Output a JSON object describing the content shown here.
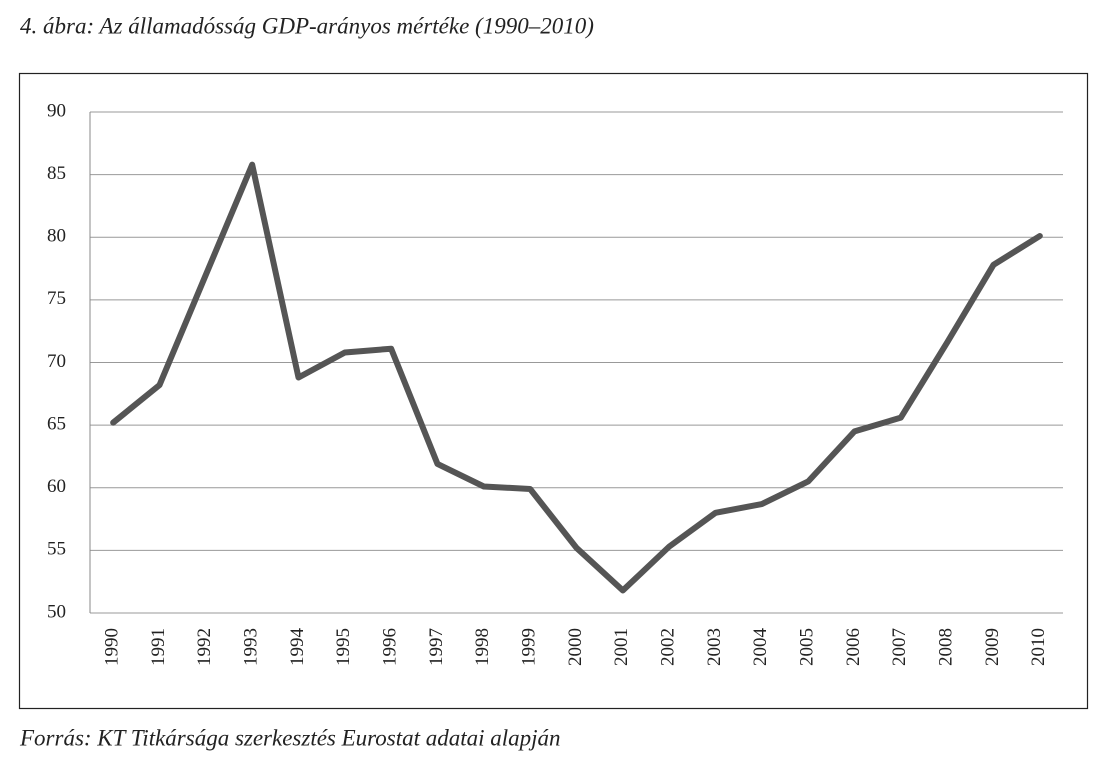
{
  "chart_data": {
    "type": "line",
    "title": "4. ábra: Az államadósság GDP-arányos mértéke (1990–2010)",
    "source": "Forrás: KT Titkársága szerkesztés Eurostat adatai alapján",
    "categories": [
      "1990",
      "1991",
      "1992",
      "1993",
      "1994",
      "1995",
      "1996",
      "1997",
      "1998",
      "1999",
      "2000",
      "2001",
      "2002",
      "2003",
      "2004",
      "2005",
      "2006",
      "2007",
      "2008",
      "2009",
      "2010"
    ],
    "values": [
      65.2,
      68.2,
      77.0,
      85.8,
      68.8,
      70.8,
      71.1,
      61.9,
      60.1,
      59.9,
      55.2,
      51.8,
      55.3,
      58.0,
      58.7,
      60.5,
      64.5,
      65.6,
      71.6,
      77.8,
      80.1
    ],
    "color": "#555555",
    "ylim": [
      50,
      90
    ],
    "yticks": [
      50,
      55,
      60,
      65,
      70,
      75,
      80,
      85,
      90
    ],
    "grid": true
  }
}
